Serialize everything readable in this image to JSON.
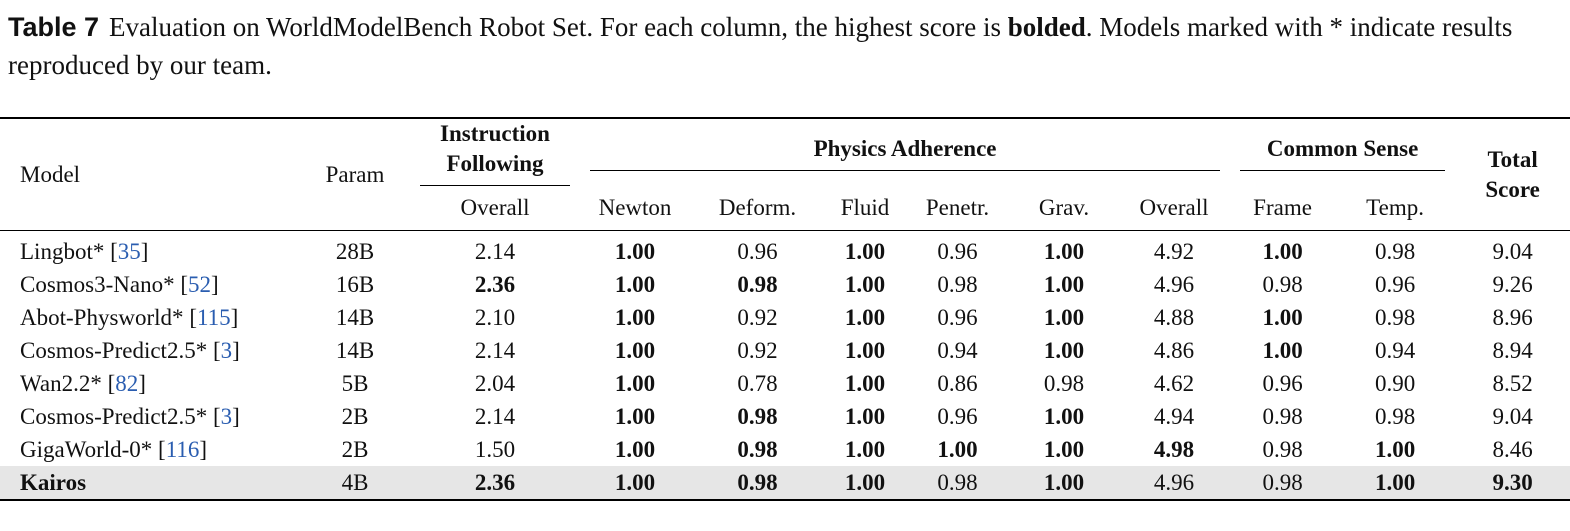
{
  "caption": {
    "label": "Table 7",
    "text_before": "Evaluation on WorldModelBench Robot Set. For each column, the highest score is",
    "bold_word": "bolded",
    "text_after": ". Models marked with * indicate results reproduced by our team."
  },
  "table": {
    "header": {
      "model": "Model",
      "param": "Param",
      "groups": [
        {
          "title": "Instruction Following",
          "columns": [
            "Overall"
          ]
        },
        {
          "title": "Physics Adherence",
          "columns": [
            "Newton",
            "Deform.",
            "Fluid",
            "Penetr.",
            "Grav.",
            "Overall"
          ]
        },
        {
          "title": "Common Sense",
          "columns": [
            "Frame",
            "Temp."
          ]
        }
      ],
      "total": "Total Score"
    },
    "rows": [
      {
        "model": "Lingbot*",
        "cite": "[35]",
        "cells": [
          "28B",
          "2.14",
          "1.00",
          "0.96",
          "1.00",
          "0.96",
          "1.00",
          "4.92",
          "1.00",
          "0.98",
          "9.04"
        ],
        "bold": [
          2,
          4,
          6,
          8
        ]
      },
      {
        "model": "Cosmos3-Nano*",
        "cite": "[52]",
        "cells": [
          "16B",
          "2.36",
          "1.00",
          "0.98",
          "1.00",
          "0.98",
          "1.00",
          "4.96",
          "0.98",
          "0.96",
          "9.26"
        ],
        "bold": [
          1,
          2,
          3,
          4,
          6
        ]
      },
      {
        "model": "Abot-Physworld*",
        "cite": "[115]",
        "cells": [
          "14B",
          "2.10",
          "1.00",
          "0.92",
          "1.00",
          "0.96",
          "1.00",
          "4.88",
          "1.00",
          "0.98",
          "8.96"
        ],
        "bold": [
          2,
          4,
          6,
          8
        ]
      },
      {
        "model": "Cosmos-Predict2.5*",
        "cite": "[3]",
        "cells": [
          "14B",
          "2.14",
          "1.00",
          "0.92",
          "1.00",
          "0.94",
          "1.00",
          "4.86",
          "1.00",
          "0.94",
          "8.94"
        ],
        "bold": [
          2,
          4,
          6,
          8
        ]
      },
      {
        "model": "Wan2.2*",
        "cite": "[82]",
        "cells": [
          "5B",
          "2.04",
          "1.00",
          "0.78",
          "1.00",
          "0.86",
          "0.98",
          "4.62",
          "0.96",
          "0.90",
          "8.52"
        ],
        "bold": [
          2,
          4
        ]
      },
      {
        "model": "Cosmos-Predict2.5*",
        "cite": "[3]",
        "cells": [
          "2B",
          "2.14",
          "1.00",
          "0.98",
          "1.00",
          "0.96",
          "1.00",
          "4.94",
          "0.98",
          "0.98",
          "9.04"
        ],
        "bold": [
          2,
          3,
          4,
          6
        ]
      },
      {
        "model": "GigaWorld-0*",
        "cite": "[116]",
        "cells": [
          "2B",
          "1.50",
          "1.00",
          "0.98",
          "1.00",
          "1.00",
          "1.00",
          "4.98",
          "0.98",
          "1.00",
          "8.46"
        ],
        "bold": [
          2,
          3,
          4,
          5,
          6,
          7,
          9
        ]
      },
      {
        "model": "Kairos",
        "model_bold": true,
        "highlight": true,
        "cells": [
          "4B",
          "2.36",
          "1.00",
          "0.98",
          "1.00",
          "0.98",
          "1.00",
          "4.96",
          "0.98",
          "1.00",
          "9.30"
        ],
        "bold": [
          1,
          2,
          3,
          4,
          6,
          9,
          10
        ]
      }
    ]
  }
}
